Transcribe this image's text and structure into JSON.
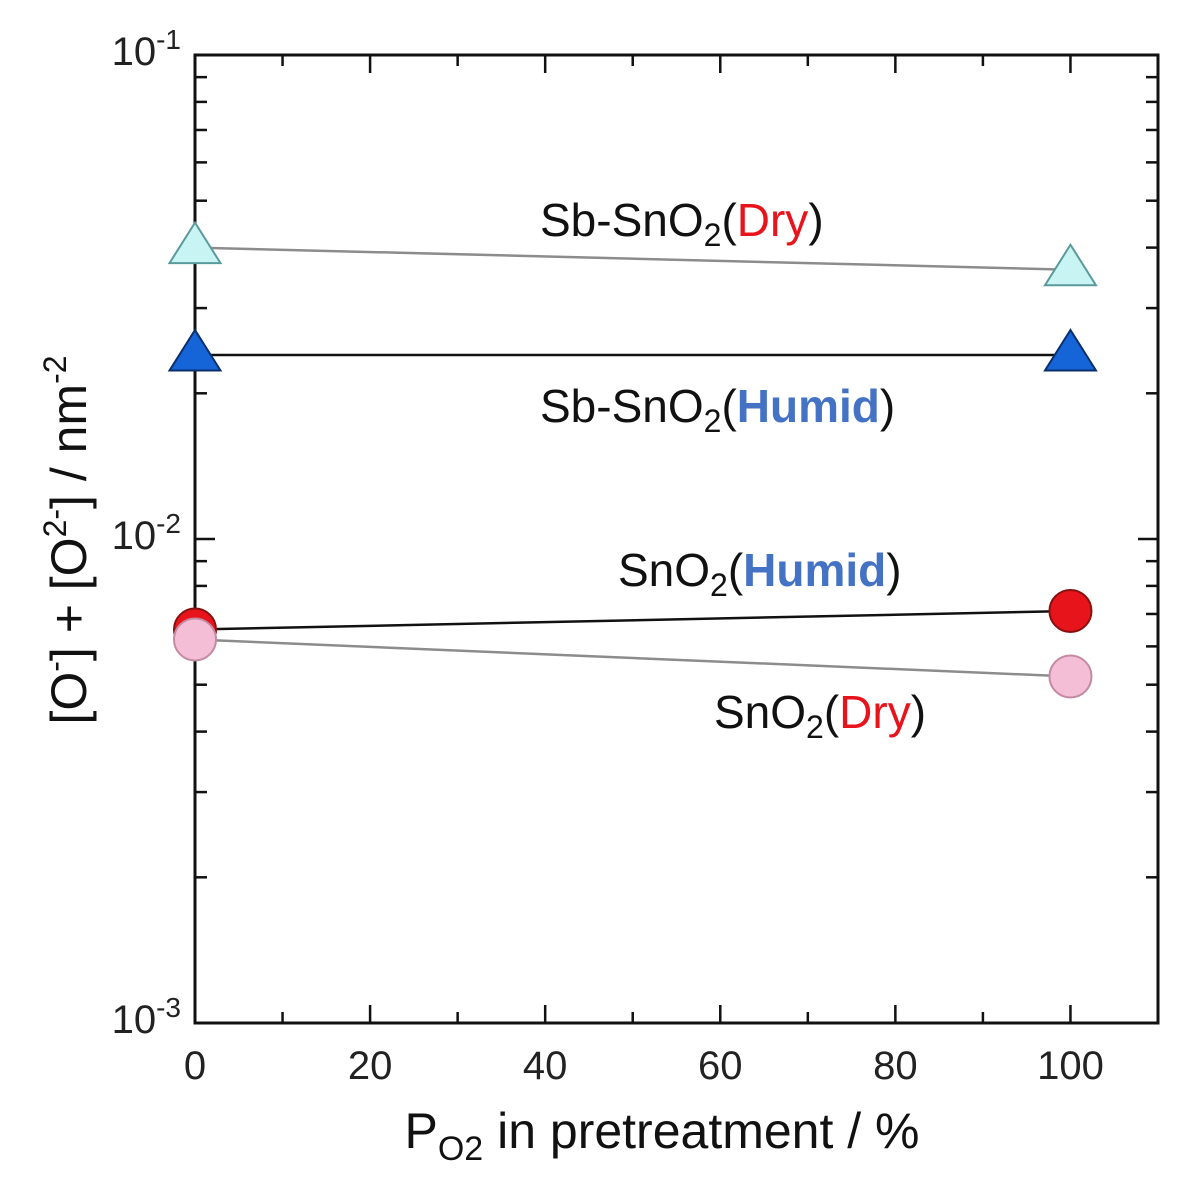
{
  "chart_data": {
    "type": "scatter",
    "title": "",
    "x": [
      0,
      100
    ],
    "xlim": [
      0,
      110
    ],
    "ylim": [
      0.001,
      0.1
    ],
    "yscale": "log",
    "xlabel": {
      "main": "P",
      "sub": "O2",
      "rest": " in pretreatment / %"
    },
    "ylabel": {
      "p1": "[O",
      "sup1": "-",
      "p2": "] + [O",
      "sup2": "2-",
      "p3": "] / nm",
      "sup3": "-2"
    },
    "x_ticks": [
      {
        "value": 0,
        "label": "0"
      },
      {
        "value": 20,
        "label": "20"
      },
      {
        "value": 40,
        "label": "40"
      },
      {
        "value": 60,
        "label": "60"
      },
      {
        "value": 80,
        "label": "80"
      },
      {
        "value": 100,
        "label": "100"
      }
    ],
    "y_ticks": [
      {
        "value": 0.001,
        "base": "10",
        "exp": "-3"
      },
      {
        "value": 0.01,
        "base": "10",
        "exp": "-2"
      },
      {
        "value": 0.1,
        "base": "10",
        "exp": "-1"
      }
    ],
    "series": [
      {
        "name": "Sb-SnO2(Dry)",
        "values": [
          0.04,
          0.036
        ],
        "marker": "triangle",
        "fill": "#c9f4f4",
        "stroke": "#5a9a9a",
        "line": "#8c8c8c",
        "label": {
          "prefix": "Sb-SnO",
          "sub": "2",
          "open": "(",
          "cond": "Dry",
          "close": ")",
          "cond_color": "#e8141c",
          "bold": false
        }
      },
      {
        "name": "Sb-SnO2(Humid)",
        "values": [
          0.024,
          0.024
        ],
        "marker": "triangle",
        "fill": "#1565d8",
        "stroke": "#0a2f6c",
        "line": "#111111",
        "label": {
          "prefix": "Sb-SnO",
          "sub": "2",
          "open": "(",
          "cond": "Humid",
          "close": ")",
          "cond_color": "#4472c4",
          "bold": true
        }
      },
      {
        "name": "SnO2(Humid)",
        "values": [
          0.0065,
          0.0071
        ],
        "marker": "circle",
        "fill": "#e8141c",
        "stroke": "#8a1010",
        "line": "#111111",
        "label": {
          "prefix": "SnO",
          "sub": "2",
          "open": "(",
          "cond": "Humid",
          "close": ")",
          "cond_color": "#4472c4",
          "bold": true
        }
      },
      {
        "name": "SnO2(Dry)",
        "values": [
          0.0062,
          0.0052
        ],
        "marker": "circle",
        "fill": "#f4bfd6",
        "stroke": "#c48aa4",
        "line": "#8c8c8c",
        "label": {
          "prefix": "SnO",
          "sub": "2",
          "open": "(",
          "cond": "Dry",
          "close": ")",
          "cond_color": "#e8141c",
          "bold": false
        }
      }
    ]
  }
}
